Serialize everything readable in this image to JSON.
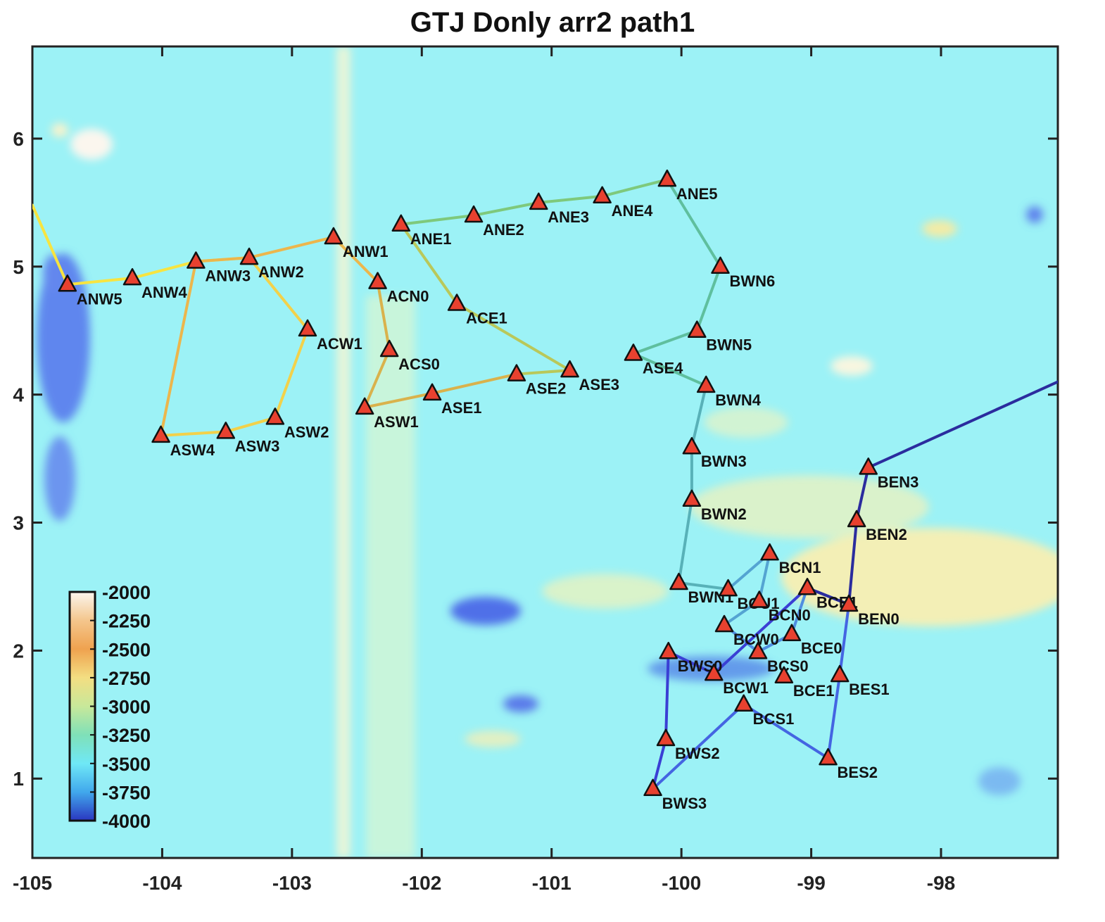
{
  "title": "GTJ Donly arr2 path1",
  "axes": {
    "xlim": [
      -105,
      -97.1
    ],
    "ylim": [
      0.38,
      6.72
    ],
    "xticks": [
      -105,
      -104,
      -103,
      -102,
      -101,
      -100,
      -99,
      -98
    ],
    "yticks": [
      1,
      2,
      3,
      4,
      5,
      6
    ]
  },
  "colorbar": {
    "range": [
      -4000,
      -2000
    ],
    "labels": [
      "-2000",
      "-2250",
      "-2500",
      "-2750",
      "-3000",
      "-3250",
      "-3500",
      "-3750",
      "-4000"
    ],
    "colors": [
      "#fbf6ee",
      "#f4c68c",
      "#efa24f",
      "#f3de82",
      "#c8e89a",
      "#7fe0b8",
      "#6fe8f6",
      "#41a8ec",
      "#2a36c0"
    ]
  },
  "stations": [
    {
      "name": "ANW5",
      "lon": -104.73,
      "lat": 4.86
    },
    {
      "name": "ANW4",
      "lon": -104.23,
      "lat": 4.91
    },
    {
      "name": "ANW3",
      "lon": -103.74,
      "lat": 5.04
    },
    {
      "name": "ANW2",
      "lon": -103.33,
      "lat": 5.07
    },
    {
      "name": "ANW1",
      "lon": -102.68,
      "lat": 5.23
    },
    {
      "name": "ANE1",
      "lon": -102.16,
      "lat": 5.33
    },
    {
      "name": "ANE2",
      "lon": -101.6,
      "lat": 5.4
    },
    {
      "name": "ANE3",
      "lon": -101.1,
      "lat": 5.5
    },
    {
      "name": "ANE4",
      "lon": -100.61,
      "lat": 5.55
    },
    {
      "name": "ANE5",
      "lon": -100.11,
      "lat": 5.68
    },
    {
      "name": "BWN6",
      "lon": -99.7,
      "lat": 5.0
    },
    {
      "name": "ACN0",
      "lon": -102.34,
      "lat": 4.88
    },
    {
      "name": "ACE1",
      "lon": -101.73,
      "lat": 4.71
    },
    {
      "name": "ACW1",
      "lon": -102.88,
      "lat": 4.51
    },
    {
      "name": "ACS0",
      "lon": -102.25,
      "lat": 4.35
    },
    {
      "name": "BWN5",
      "lon": -99.88,
      "lat": 4.5
    },
    {
      "name": "ASE4",
      "lon": -100.37,
      "lat": 4.32
    },
    {
      "name": "ASE2",
      "lon": -101.27,
      "lat": 4.16
    },
    {
      "name": "ASE3",
      "lon": -100.86,
      "lat": 4.19
    },
    {
      "name": "BWN4",
      "lon": -99.81,
      "lat": 4.07
    },
    {
      "name": "ASE1",
      "lon": -101.92,
      "lat": 4.01
    },
    {
      "name": "ASW1",
      "lon": -102.44,
      "lat": 3.9
    },
    {
      "name": "ASW2",
      "lon": -103.13,
      "lat": 3.82
    },
    {
      "name": "ASW3",
      "lon": -103.51,
      "lat": 3.71
    },
    {
      "name": "ASW4",
      "lon": -104.01,
      "lat": 3.68
    },
    {
      "name": "BWN3",
      "lon": -99.92,
      "lat": 3.59
    },
    {
      "name": "BEN3",
      "lon": -98.56,
      "lat": 3.43
    },
    {
      "name": "BWN2",
      "lon": -99.92,
      "lat": 3.18
    },
    {
      "name": "BEN2",
      "lon": -98.65,
      "lat": 3.02
    },
    {
      "name": "BCN1",
      "lon": -99.32,
      "lat": 2.76
    },
    {
      "name": "BWN1",
      "lon": -100.02,
      "lat": 2.53
    },
    {
      "name": "BCU1",
      "lon": -99.64,
      "lat": 2.48
    },
    {
      "name": "BCN0",
      "lon": -99.4,
      "lat": 2.39
    },
    {
      "name": "BCE1",
      "lon": -99.03,
      "lat": 2.49
    },
    {
      "name": "BEN0",
      "lon": -98.71,
      "lat": 2.36
    },
    {
      "name": "BCW0",
      "lon": -99.67,
      "lat": 2.2
    },
    {
      "name": "BCE0",
      "lon": -99.15,
      "lat": 2.13
    },
    {
      "name": "BCS0",
      "lon": -99.41,
      "lat": 1.99
    },
    {
      "name": "BWS0",
      "lon": -100.1,
      "lat": 1.99
    },
    {
      "name": "BCW1",
      "lon": -99.75,
      "lat": 1.82
    },
    {
      "name": "BCE1",
      "lon": -99.21,
      "lat": 1.8
    },
    {
      "name": "BES1",
      "lon": -98.78,
      "lat": 1.81
    },
    {
      "name": "BCS1",
      "lon": -99.52,
      "lat": 1.58
    },
    {
      "name": "BWS2",
      "lon": -100.12,
      "lat": 1.31
    },
    {
      "name": "BES2",
      "lon": -98.87,
      "lat": 1.16
    },
    {
      "name": "BWS3",
      "lon": -100.22,
      "lat": 0.92
    }
  ],
  "path": {
    "start": {
      "lon": -105.0,
      "lat": 5.48
    },
    "end": {
      "lon": -97.1,
      "lat": 4.1
    },
    "order": [
      "ANW5",
      "ANW4",
      "ANW3",
      "ANW2",
      "ACW1",
      "ASW2",
      "ASW3",
      "ASW4",
      "ANW3",
      "ANW2",
      "ANW1",
      "ACN0",
      "ACS0",
      "ASW1",
      "ASE1",
      "ASE2",
      "ASE3",
      "ACE1",
      "ANE1",
      "ANE2",
      "ANE3",
      "ANE4",
      "ANE5",
      "BWN6",
      "BWN5",
      "ASE4",
      "BWN4",
      "BWN3",
      "BWN2",
      "BWN1",
      "BCU1",
      "BCN1",
      "BCN0",
      "BCW0",
      "BCS0",
      "BCE0",
      "BCE1",
      "BEN0",
      "BES1",
      "BES2",
      "BCS1",
      "BWS3",
      "BWS2",
      "BWS0",
      "BCW1",
      "BCE1",
      "BEN0",
      "BEN2",
      "BEN3"
    ],
    "colors": [
      "#f7e440",
      "#f2d14a",
      "#ecb64c",
      "#d9b24c",
      "#b9c85a",
      "#7ec97c",
      "#5fbf9e",
      "#58b1b8",
      "#54a4d2",
      "#4f8ee0",
      "#4465e2",
      "#3a3fd4",
      "#2b2c9e"
    ]
  }
}
